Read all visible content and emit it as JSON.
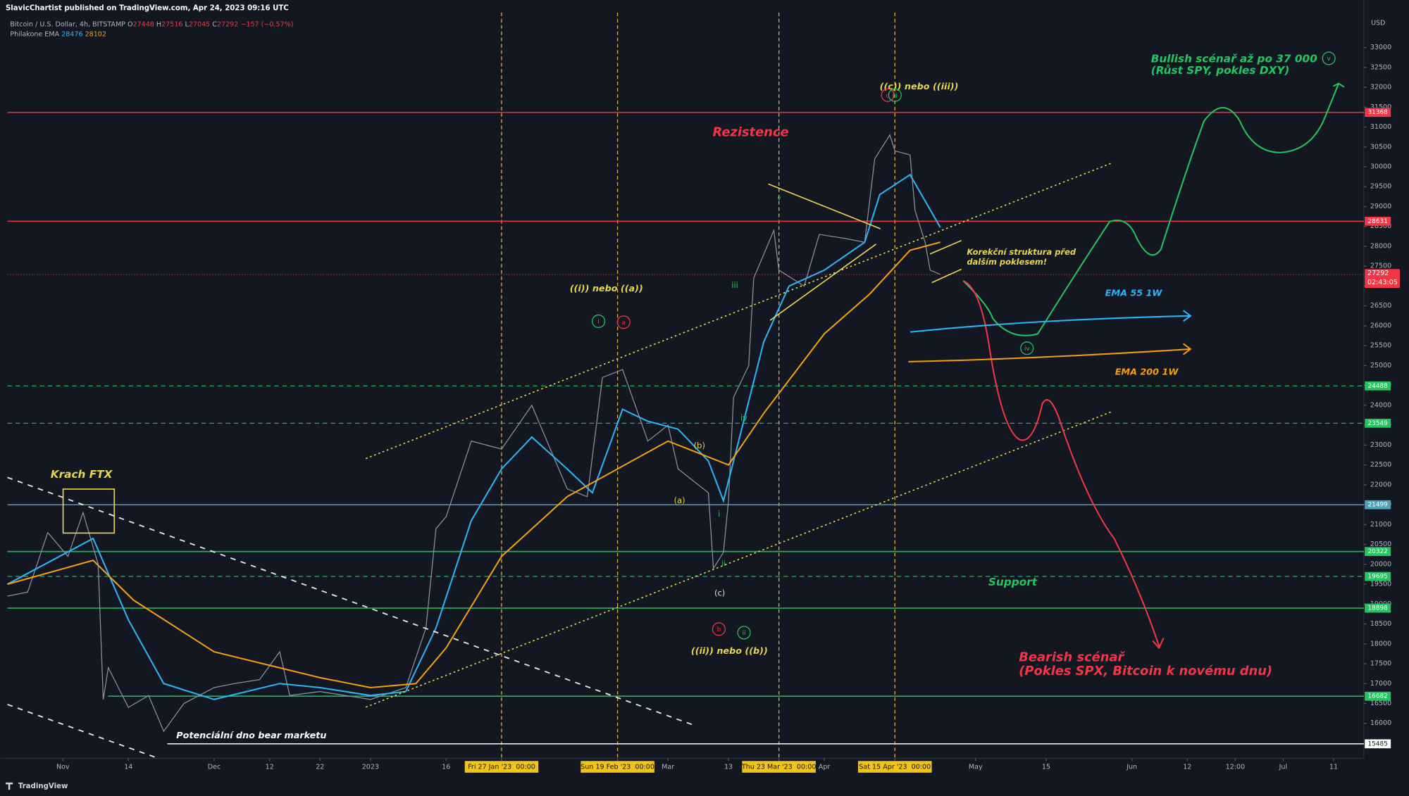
{
  "chart_data": {
    "type": "line",
    "publisher": "SlavicChartist published on TradingView.com, Apr 24, 2023 09:16 UTC",
    "brand": "TradingView",
    "currency": "USD",
    "ohlc": [
      {
        "label": "O",
        "value": 27448
      },
      {
        "label": "H",
        "value": 27516
      },
      {
        "label": "L",
        "value": 27045
      },
      {
        "label": "C",
        "value": 27292
      }
    ],
    "change": "−157 (−0.57%)",
    "indicator": "Philakone EMA",
    "countdown": "02:43:05",
    "xlim": [
      "2022-10-21",
      "2023-07-17"
    ],
    "ylim": [
      15120,
      34196
    ],
    "grid": false,
    "xticks": [
      {
        "value": "2022-11-01",
        "label": "Nov"
      },
      {
        "value": "2022-11-14",
        "label": "14"
      },
      {
        "value": "2022-12-01",
        "label": "Dec"
      },
      {
        "value": "2022-12-12",
        "label": "12"
      },
      {
        "value": "2022-12-22",
        "label": "22"
      },
      {
        "value": "2023-01-01",
        "label": "2023"
      },
      {
        "value": "2023-01-16",
        "label": "16"
      },
      {
        "value": "2023-01-27",
        "label": "Fri 27 Jan '23  00:00",
        "highlight": true
      },
      {
        "value": "2023-02-19",
        "label": "Sun 19 Feb '23  00:00",
        "highlight": true
      },
      {
        "value": "2023-03-01",
        "label": "Mar"
      },
      {
        "value": "2023-03-13",
        "label": "13"
      },
      {
        "value": "2023-03-23",
        "label": "Thu 23 Mar '23  00:00",
        "highlight": true
      },
      {
        "value": "2023-04-01",
        "label": "Apr"
      },
      {
        "value": "2023-04-15",
        "label": "Sat 15 Apr '23  00:00",
        "highlight": true
      },
      {
        "value": "2023-05-01",
        "label": "May"
      },
      {
        "value": "2023-05-15",
        "label": "15"
      },
      {
        "value": "2023-06-01",
        "label": "Jun"
      },
      {
        "value": "2023-06-12",
        "label": "12"
      },
      {
        "value": "2023-06-21T12:00Z",
        "label": "12:00"
      },
      {
        "value": "2023-07-01",
        "label": "Jul"
      },
      {
        "value": "2023-07-11",
        "label": "11"
      }
    ],
    "yticks": [
      16000,
      16500,
      17000,
      17500,
      18000,
      18500,
      19000,
      19500,
      20000,
      20500,
      21000,
      21500,
      22000,
      22500,
      23000,
      23500,
      24000,
      24500,
      25000,
      25500,
      26000,
      26500,
      27000,
      27500,
      28000,
      28500,
      29000,
      29500,
      30000,
      30500,
      31000,
      31500,
      32000,
      32500,
      33000
    ],
    "levels": [
      {
        "value": 31368,
        "color": "#f23645",
        "style": "solid"
      },
      {
        "value": 28631,
        "color": "#f23645",
        "style": "solid"
      },
      {
        "value": 24488,
        "color": "#22c55e",
        "style": "dashed"
      },
      {
        "value": 23549,
        "color": "#22c55e",
        "style": "dashed"
      },
      {
        "value": 21499,
        "color": "#4fa3b8",
        "style": "solid"
      },
      {
        "value": 20322,
        "color": "#22c55e",
        "style": "solid"
      },
      {
        "value": 19695,
        "color": "#22c55e",
        "style": "dashed"
      },
      {
        "value": 18898,
        "color": "#22c55e",
        "style": "solid"
      },
      {
        "value": 16682,
        "color": "#22c55e",
        "style": "solid"
      },
      {
        "value": 15485,
        "color": "#ffffff",
        "style": "solid"
      }
    ],
    "series": [
      {
        "name": "Bitcoin / U.S. Dollar, 4h, BITSTAMP",
        "color": "#8a8f98",
        "x": [
          "2022-10-21",
          "2022-10-25",
          "2022-10-29",
          "2022-11-02",
          "2022-11-05",
          "2022-11-08",
          "2022-11-09",
          "2022-11-10",
          "2022-11-14",
          "2022-11-18",
          "2022-11-21",
          "2022-11-25",
          "2022-12-01",
          "2022-12-05",
          "2022-12-10",
          "2022-12-14",
          "2022-12-16",
          "2022-12-22",
          "2023-01-01",
          "2023-01-08",
          "2023-01-12",
          "2023-01-14",
          "2023-01-16",
          "2023-01-21",
          "2023-01-27",
          "2023-02-02",
          "2023-02-09",
          "2023-02-13",
          "2023-02-16",
          "2023-02-20",
          "2023-02-25",
          "2023-03-01",
          "2023-03-03",
          "2023-03-09",
          "2023-03-10",
          "2023-03-12",
          "2023-03-13",
          "2023-03-14",
          "2023-03-17",
          "2023-03-18",
          "2023-03-20",
          "2023-03-22",
          "2023-03-23",
          "2023-03-28",
          "2023-03-31",
          "2023-04-05",
          "2023-04-09",
          "2023-04-11",
          "2023-04-14",
          "2023-04-15",
          "2023-04-18",
          "2023-04-19",
          "2023-04-21",
          "2023-04-22",
          "2023-04-24"
        ],
        "values": [
          19200,
          19300,
          20800,
          20200,
          21300,
          20000,
          16600,
          17400,
          16400,
          16700,
          15800,
          16500,
          16900,
          17000,
          17100,
          17800,
          16700,
          16800,
          16600,
          16900,
          18400,
          20900,
          21200,
          23100,
          22900,
          24000,
          21900,
          21700,
          24700,
          24900,
          23100,
          23500,
          22400,
          21800,
          19900,
          20300,
          21600,
          24200,
          25000,
          27200,
          27800,
          28400,
          27400,
          27000,
          28300,
          28200,
          28100,
          30200,
          30800,
          30400,
          30300,
          28900,
          28100,
          27400,
          27292
        ]
      },
      {
        "color": "#29b6f6",
        "x": [
          "2022-10-21",
          "2022-11-07",
          "2022-11-14",
          "2022-11-21",
          "2022-12-01",
          "2022-12-14",
          "2022-12-22",
          "2023-01-01",
          "2023-01-08",
          "2023-01-14",
          "2023-01-21",
          "2023-01-27",
          "2023-02-02",
          "2023-02-09",
          "2023-02-14",
          "2023-02-20",
          "2023-02-25",
          "2023-03-03",
          "2023-03-09",
          "2023-03-12",
          "2023-03-16",
          "2023-03-20",
          "2023-03-25",
          "2023-04-01",
          "2023-04-09",
          "2023-04-12",
          "2023-04-18",
          "2023-04-24"
        ],
        "values": [
          19500,
          20650,
          18600,
          17000,
          16600,
          17000,
          16900,
          16700,
          16800,
          18400,
          21100,
          22400,
          23200,
          22400,
          21800,
          23900,
          23600,
          23400,
          22600,
          21600,
          23600,
          25600,
          27000,
          27400,
          28100,
          29300,
          29800,
          28476
        ]
      },
      {
        "color": "#f59e0b",
        "x": [
          "2022-10-21",
          "2022-11-07",
          "2022-11-15",
          "2022-12-01",
          "2022-12-22",
          "2023-01-01",
          "2023-01-10",
          "2023-01-16",
          "2023-01-27",
          "2023-02-09",
          "2023-02-19",
          "2023-03-01",
          "2023-03-09",
          "2023-03-13",
          "2023-03-20",
          "2023-04-01",
          "2023-04-10",
          "2023-04-18",
          "2023-04-24"
        ],
        "values": [
          19500,
          20100,
          19100,
          17800,
          17150,
          16900,
          17000,
          17900,
          20200,
          21700,
          22400,
          23100,
          22700,
          22500,
          23800,
          25800,
          26800,
          27900,
          28102
        ]
      }
    ],
    "annotations": [
      "Bullish scénař až po 37 000",
      "(Růst SPY, pokles DXY)",
      "Rezistence",
      "((c)) nebo ((iii))",
      "((i)) nebo ((a))",
      "Korekční struktura před",
      "dalším poklesem!",
      "EMA 55 1W",
      "EMA 200 1W",
      "Krach FTX",
      "Support",
      "Bearish scénař",
      "(Pokles SPX, Bitcoin k novému dnu)",
      "((ii)) nebo ((b))",
      "Potenciální dno bear marketu",
      "iii",
      "iv",
      "i",
      "ii",
      "(a)",
      "(b)",
      "(c)",
      "v",
      "i",
      "a",
      "iii",
      "b",
      "ii",
      "iv",
      "v",
      "c"
    ]
  }
}
